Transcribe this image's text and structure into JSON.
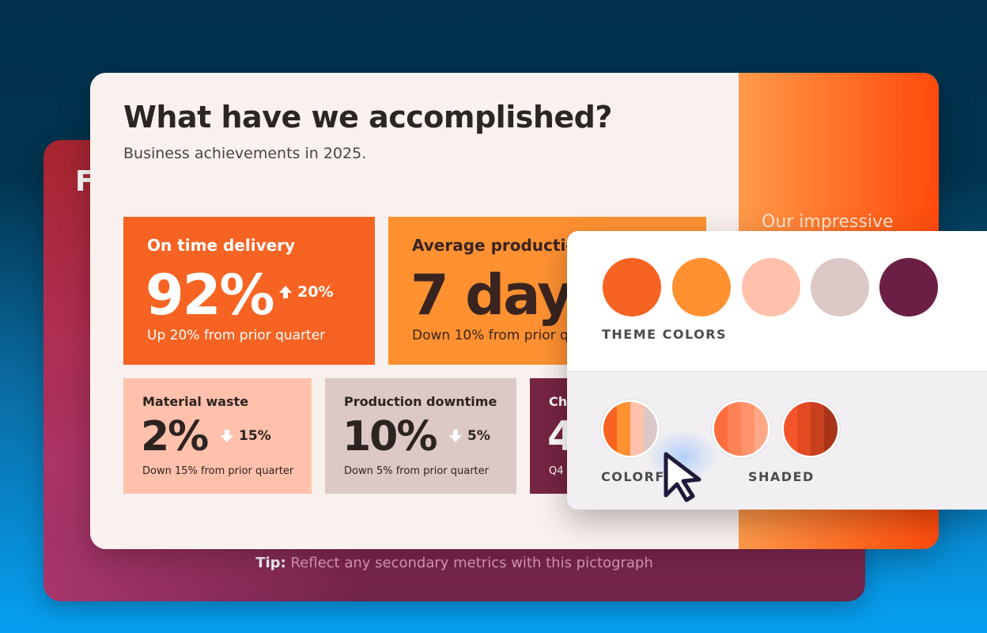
{
  "back_slide": {
    "letter": "F",
    "tip_label": "Tip:",
    "tip_text": " Reflect any secondary metrics with this pictograph"
  },
  "slide": {
    "title": "What have we accomplished?",
    "subtitle": "Business achievements in 2025.",
    "accent_text": "Our impressive"
  },
  "cards": {
    "delivery": {
      "label": "On time delivery",
      "value": "92%",
      "change": "20%",
      "direction": "up",
      "note": "Up 20% from prior quarter"
    },
    "production": {
      "label": "Average productio",
      "value": "7 day",
      "note": "Down 10% from prior q"
    },
    "waste": {
      "label": "Material waste",
      "value": "2%",
      "change": "15%",
      "direction": "down",
      "note": "Down 15% from prior quarter"
    },
    "downtime": {
      "label": "Production downtime",
      "value": "10%",
      "change": "5%",
      "direction": "down",
      "note": "Down 5% from prior quarter"
    },
    "ch": {
      "label": "Ch",
      "value": "4",
      "note": "Q4"
    }
  },
  "popup": {
    "theme_label": "THEME COLORS",
    "theme_colors": [
      "#f76322",
      "#ff9131",
      "#ffc1ab",
      "#dcc8c6",
      "#6c1f44"
    ],
    "colorful_label": "COLORFU",
    "shaded_label": "SHADED",
    "colorful_palette": [
      "#f76322",
      "#ff9131",
      "#ffc1ab",
      "#dcc8c6"
    ],
    "shaded_palette_1": [
      "#ff6d3e",
      "#ff8256",
      "#ff946c",
      "#ffa888"
    ],
    "shaded_palette_2": [
      "#f4562a",
      "#e24a22",
      "#c9401e",
      "#a8351a"
    ]
  },
  "icons": {
    "up_arrow": "arrow-up-icon",
    "down_arrow": "arrow-down-icon",
    "cursor": "mouse-pointer-icon"
  }
}
